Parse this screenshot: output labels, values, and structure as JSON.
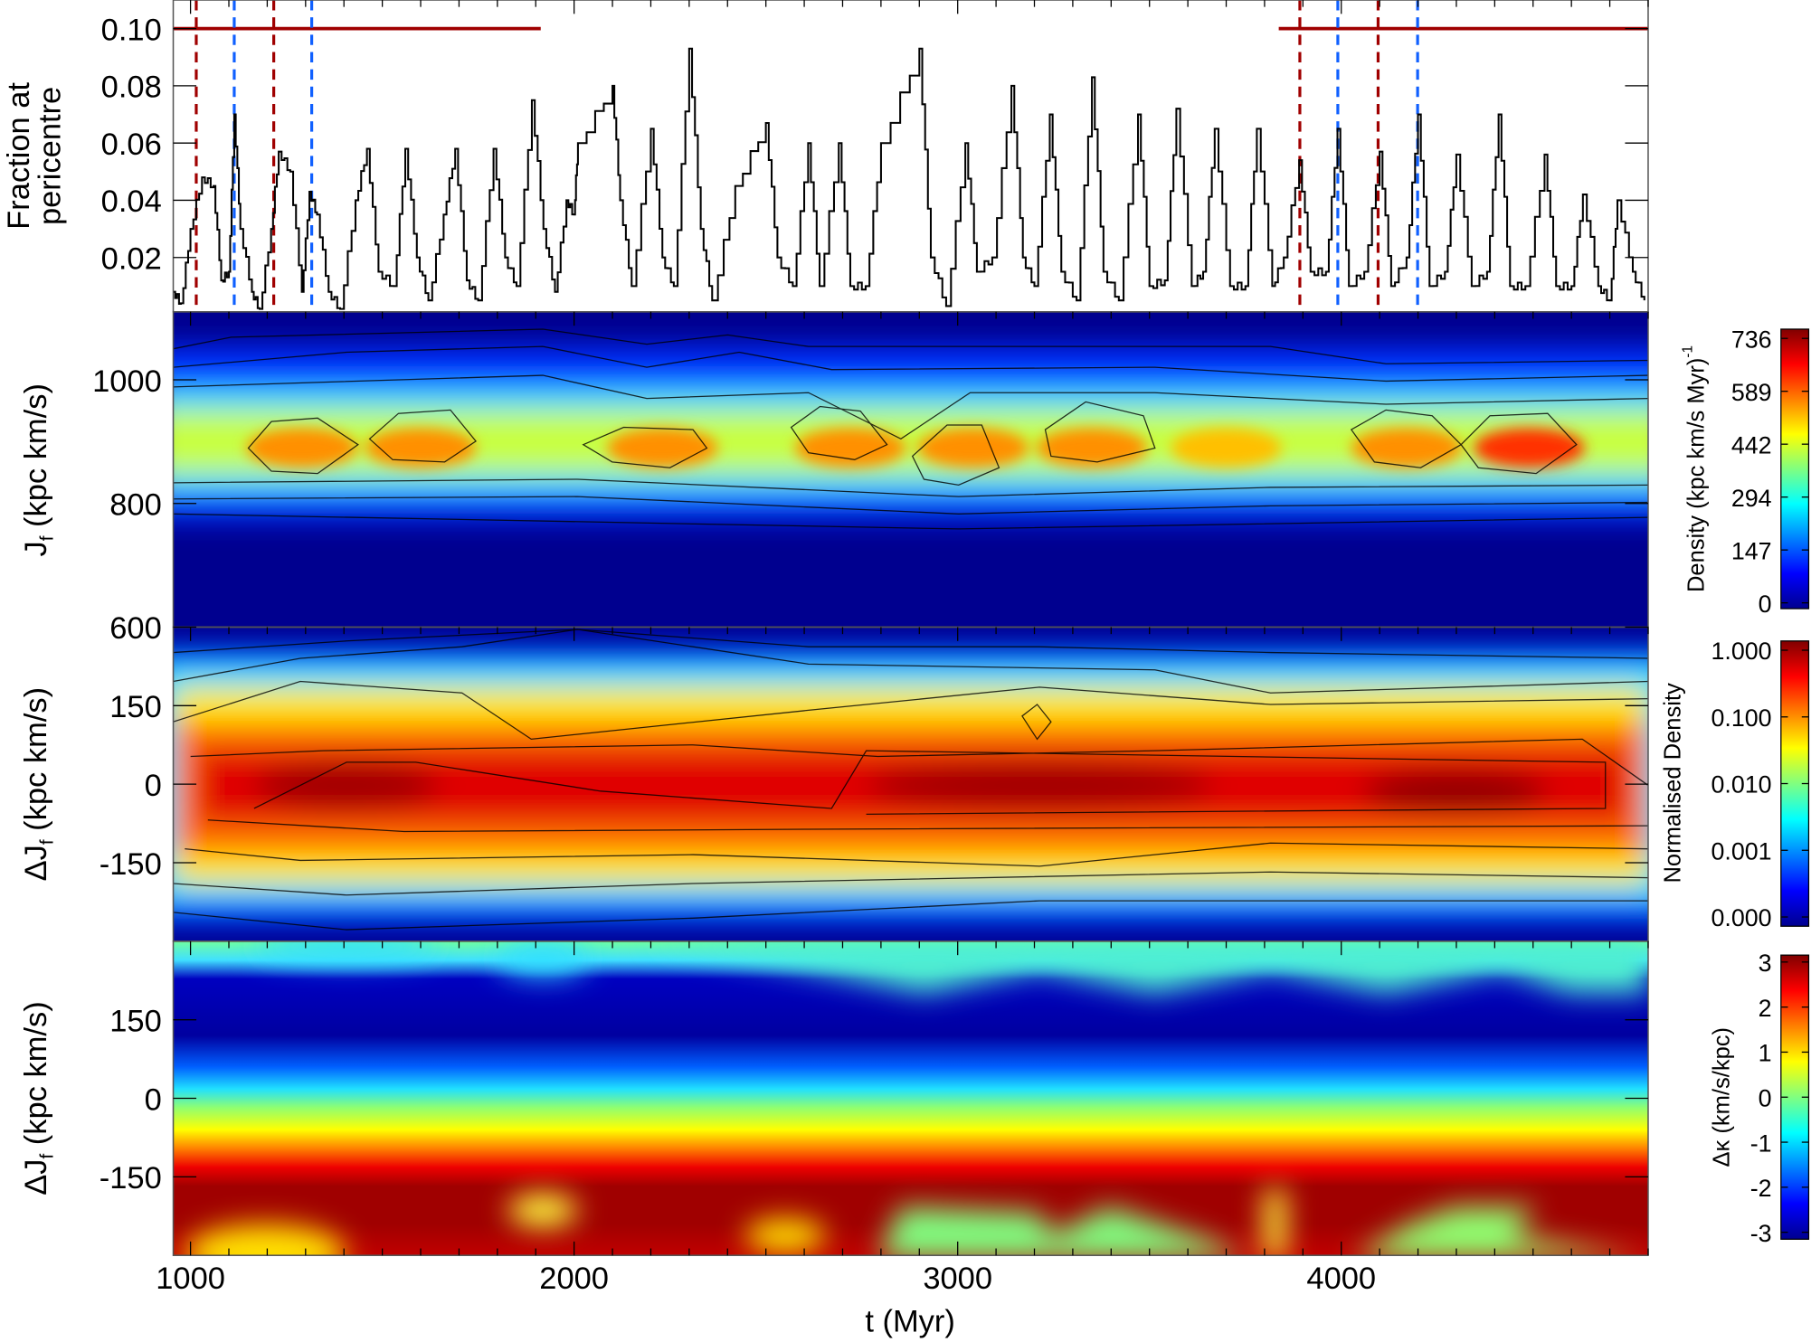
{
  "chart_data": [
    {
      "type": "line",
      "panel": "top",
      "ylabel_line1": "Fraction at",
      "ylabel_line2": "pericentre",
      "xlim": [
        955,
        4800
      ],
      "ylim": [
        0.001,
        0.11
      ],
      "yticks": [
        "0.02",
        "0.04",
        "0.06",
        "0.08",
        "0.10"
      ],
      "ytick_values": [
        0.02,
        0.04,
        0.06,
        0.08,
        0.1
      ],
      "series": [
        {
          "name": "fraction",
          "color": "#000000",
          "points": [
            [
              955,
              0.008
            ],
            [
              975,
              0.004
            ],
            [
              1000,
              0.03
            ],
            [
              1030,
              0.048
            ],
            [
              1060,
              0.045
            ],
            [
              1080,
              0.012
            ],
            [
              1100,
              0.015
            ],
            [
              1114,
              0.07
            ],
            [
              1130,
              0.03
            ],
            [
              1160,
              0.008
            ],
            [
              1180,
              0.002
            ],
            [
              1210,
              0.03
            ],
            [
              1230,
              0.057
            ],
            [
              1260,
              0.05
            ],
            [
              1290,
              0.008
            ],
            [
              1310,
              0.043
            ],
            [
              1330,
              0.035
            ],
            [
              1360,
              0.008
            ],
            [
              1390,
              0.002
            ],
            [
              1430,
              0.04
            ],
            [
              1460,
              0.058
            ],
            [
              1490,
              0.015
            ],
            [
              1530,
              0.01
            ],
            [
              1560,
              0.058
            ],
            [
              1590,
              0.02
            ],
            [
              1620,
              0.005
            ],
            [
              1660,
              0.035
            ],
            [
              1690,
              0.058
            ],
            [
              1720,
              0.012
            ],
            [
              1750,
              0.005
            ],
            [
              1790,
              0.058
            ],
            [
              1820,
              0.02
            ],
            [
              1850,
              0.01
            ],
            [
              1890,
              0.075
            ],
            [
              1920,
              0.03
            ],
            [
              1950,
              0.008
            ],
            [
              1980,
              0.04
            ],
            [
              2000,
              0.035
            ],
            [
              2010,
              0.06
            ],
            [
              2100,
              0.08
            ],
            [
              2120,
              0.04
            ],
            [
              2150,
              0.01
            ],
            [
              2200,
              0.065
            ],
            [
              2230,
              0.02
            ],
            [
              2260,
              0.01
            ],
            [
              2300,
              0.093
            ],
            [
              2330,
              0.03
            ],
            [
              2360,
              0.005
            ],
            [
              2420,
              0.045
            ],
            [
              2500,
              0.067
            ],
            [
              2530,
              0.02
            ],
            [
              2570,
              0.01
            ],
            [
              2610,
              0.06
            ],
            [
              2640,
              0.01
            ],
            [
              2690,
              0.06
            ],
            [
              2720,
              0.01
            ],
            [
              2760,
              0.01
            ],
            [
              2800,
              0.06
            ],
            [
              2900,
              0.093
            ],
            [
              2930,
              0.02
            ],
            [
              2970,
              0.003
            ],
            [
              3020,
              0.06
            ],
            [
              3050,
              0.015
            ],
            [
              3090,
              0.02
            ],
            [
              3140,
              0.08
            ],
            [
              3170,
              0.02
            ],
            [
              3200,
              0.01
            ],
            [
              3240,
              0.07
            ],
            [
              3270,
              0.015
            ],
            [
              3310,
              0.005
            ],
            [
              3350,
              0.083
            ],
            [
              3380,
              0.015
            ],
            [
              3420,
              0.005
            ],
            [
              3470,
              0.07
            ],
            [
              3500,
              0.01
            ],
            [
              3540,
              0.012
            ],
            [
              3570,
              0.072
            ],
            [
              3610,
              0.01
            ],
            [
              3640,
              0.015
            ],
            [
              3670,
              0.065
            ],
            [
              3710,
              0.01
            ],
            [
              3750,
              0.01
            ],
            [
              3780,
              0.065
            ],
            [
              3820,
              0.01
            ],
            [
              3850,
              0.02
            ],
            [
              3890,
              0.054
            ],
            [
              3920,
              0.015
            ],
            [
              3960,
              0.015
            ],
            [
              3990,
              0.065
            ],
            [
              4020,
              0.01
            ],
            [
              4060,
              0.015
            ],
            [
              4100,
              0.057
            ],
            [
              4130,
              0.01
            ],
            [
              4170,
              0.02
            ],
            [
              4200,
              0.07
            ],
            [
              4230,
              0.01
            ],
            [
              4270,
              0.015
            ],
            [
              4300,
              0.056
            ],
            [
              4340,
              0.01
            ],
            [
              4380,
              0.015
            ],
            [
              4410,
              0.07
            ],
            [
              4440,
              0.01
            ],
            [
              4480,
              0.01
            ],
            [
              4530,
              0.056
            ],
            [
              4560,
              0.01
            ],
            [
              4600,
              0.01
            ],
            [
              4630,
              0.042
            ],
            [
              4670,
              0.01
            ],
            [
              4700,
              0.005
            ],
            [
              4720,
              0.04
            ],
            [
              4760,
              0.015
            ],
            [
              4790,
              0.005
            ]
          ]
        }
      ],
      "vlines": [
        {
          "t": 1015,
          "color": "#a00000"
        },
        {
          "t": 1114,
          "color": "#1060ff"
        },
        {
          "t": 1217,
          "color": "#a00000"
        },
        {
          "t": 1316,
          "color": "#1060ff"
        },
        {
          "t": 3892,
          "color": "#a00000"
        },
        {
          "t": 3991,
          "color": "#1060ff"
        },
        {
          "t": 4096,
          "color": "#a00000"
        },
        {
          "t": 4199,
          "color": "#1060ff"
        }
      ],
      "hlines": [
        {
          "y": 0.1,
          "t0": 955,
          "t1": 1913,
          "color": "#a00000"
        },
        {
          "y": 0.1,
          "t0": 3837,
          "t1": 4800,
          "color": "#a00000"
        }
      ]
    },
    {
      "type": "heatmap",
      "panel": "Jf",
      "ylabel": {
        "main": "J",
        "sub": "f",
        "rest": " (kpc km/s)"
      },
      "ylim": [
        600,
        1110
      ],
      "yticks": [
        "600",
        "800",
        "1000"
      ],
      "ytick_values": [
        600,
        800,
        1000
      ],
      "ridge_center": 890,
      "peaks_t": [
        1290,
        1600,
        2230,
        2720,
        3040,
        3350,
        3700,
        4170,
        4490
      ],
      "colorbar": {
        "label": "Density (kpc km/s Myr)",
        "label_sup": "-1",
        "ticks": [
          "736",
          "589",
          "442",
          "294",
          "147",
          "0"
        ]
      }
    },
    {
      "type": "heatmap",
      "panel": "dJf-density",
      "ylabel": {
        "main": "ΔJ",
        "sub": "f",
        "rest": " (kpc km/s)"
      },
      "ylim": [
        -300,
        300
      ],
      "yticks": [
        "-150",
        "0",
        "150"
      ],
      "ytick_values": [
        -150,
        0,
        150
      ],
      "colorbar": {
        "label": "Normalised Density",
        "ticks": [
          "1.000",
          "0.100",
          "0.010",
          "0.001",
          "0.000"
        ]
      }
    },
    {
      "type": "heatmap",
      "panel": "dJf-dkappa",
      "ylabel": {
        "main": "ΔJ",
        "sub": "f",
        "rest": " (kpc km/s)"
      },
      "ylim": [
        -300,
        300
      ],
      "yticks": [
        "-150",
        "0",
        "150"
      ],
      "ytick_values": [
        -150,
        0,
        150
      ],
      "colorbar": {
        "label": "Δκ (km/s/kpc)",
        "ticks": [
          "3",
          "2",
          "1",
          "0",
          "-1",
          "-2",
          "-3"
        ]
      }
    }
  ],
  "xaxis": {
    "label": "t (Myr)",
    "ticks": [
      "1000",
      "2000",
      "3000",
      "4000"
    ],
    "tick_values": [
      1000,
      2000,
      3000,
      4000
    ]
  }
}
